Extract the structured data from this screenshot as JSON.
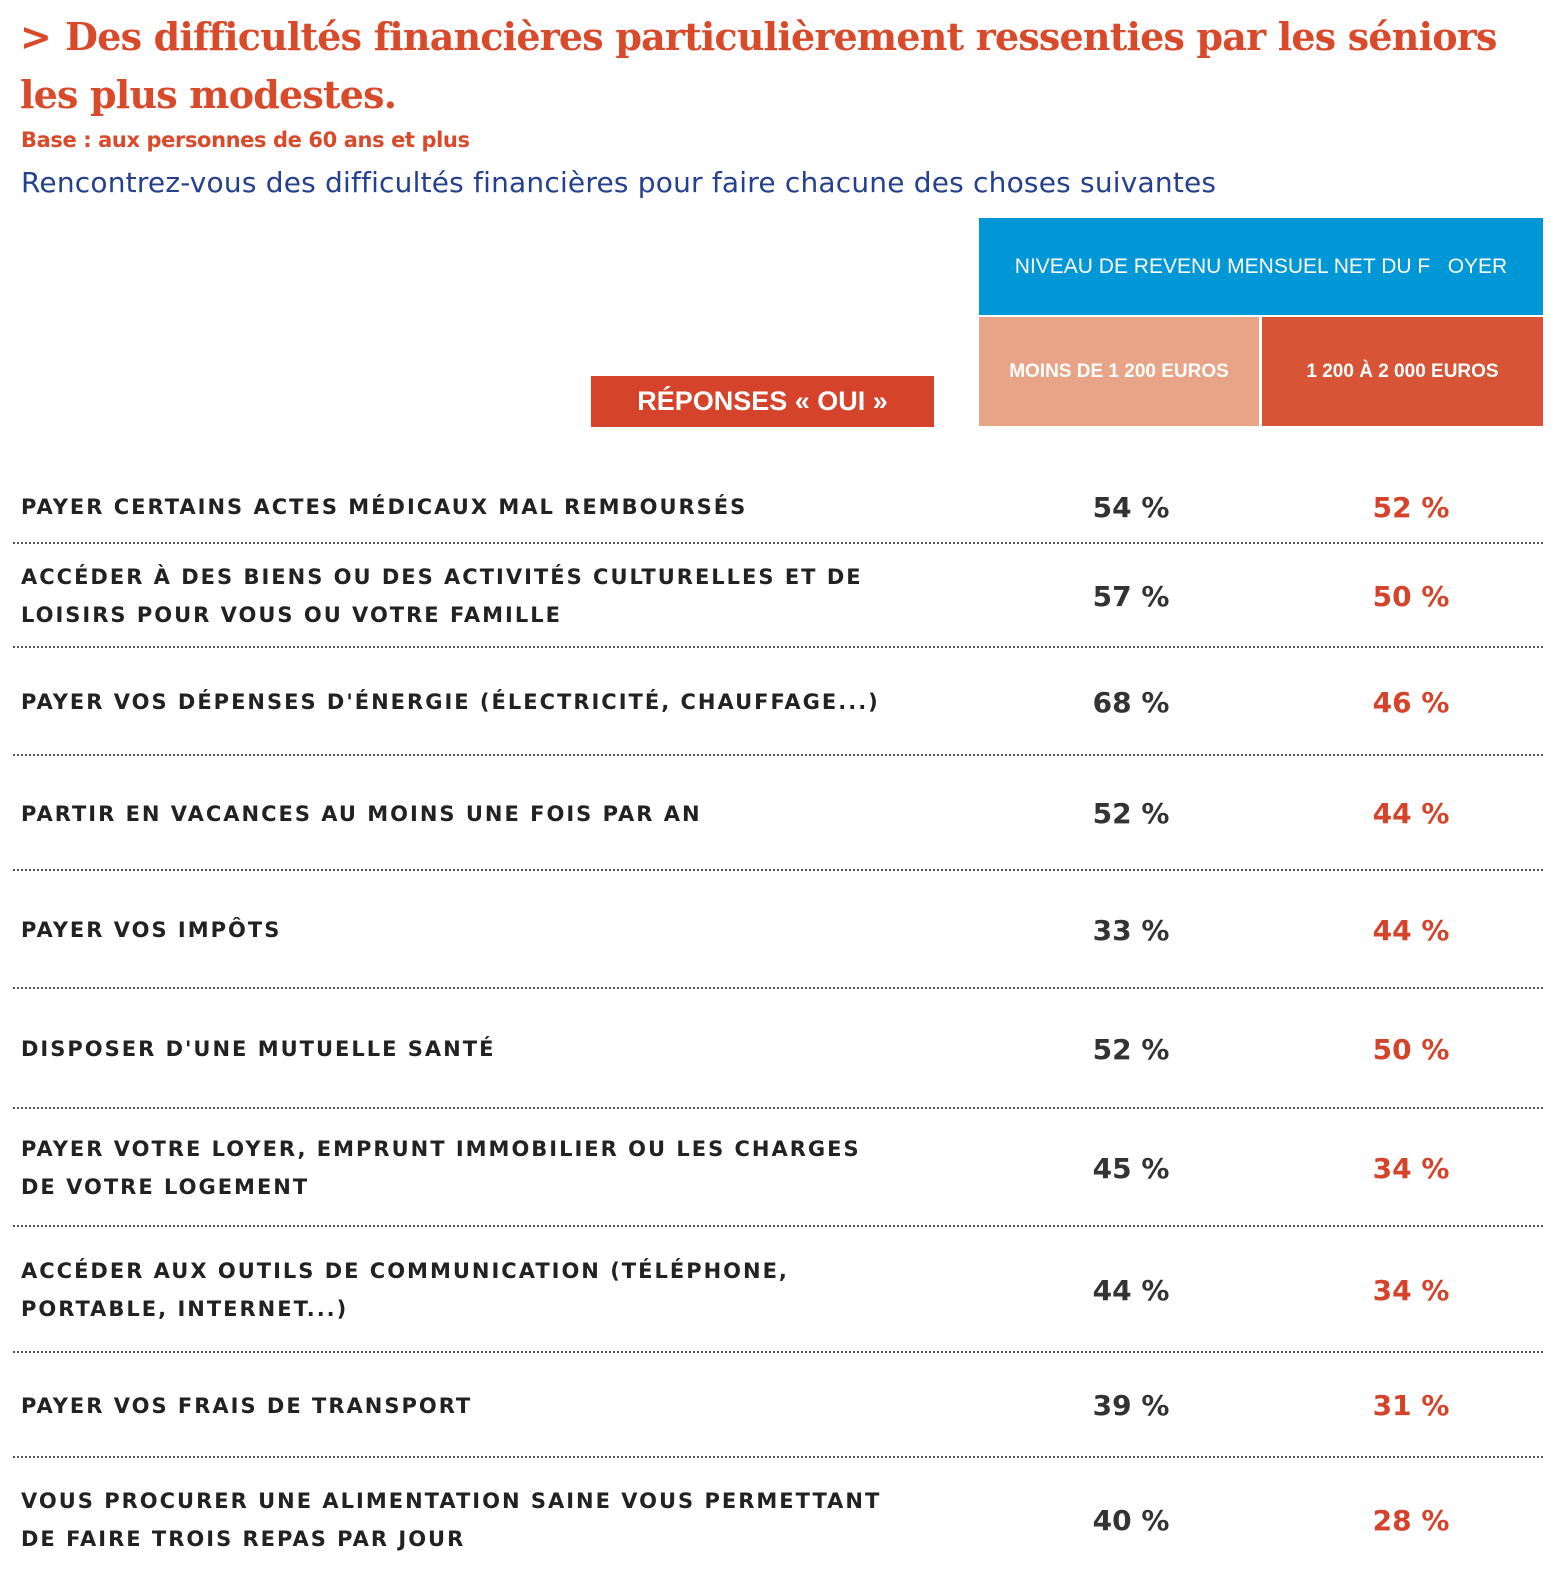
{
  "title": {
    "marker": ">",
    "text": "Des difficultés financières particulièrement ressenties par les séniors les plus modestes."
  },
  "base": "Base : aux personnes de 60 ans et plus",
  "question": "Rencontrez-vous des difficultés financières pour faire chacune des choses suivantes",
  "responses_label": "RÉPONSES « OUI »",
  "colors": {
    "title": "#d94a2b",
    "question": "#24408e",
    "header_blue": "#0097d6",
    "col_low": "#e8a487",
    "col_mid": "#d75536",
    "value_low": "#333333",
    "value_mid": "#d4432a"
  },
  "chart_data": {
    "type": "table",
    "group_header": "NIVEAU DE REVENU MENSUEL NET DU F   OYER",
    "columns": [
      "MOINS DE 1 200 EUROS",
      "1 200 À 2 000 EUROS"
    ],
    "rows": [
      {
        "label": "payer certains actes médicaux mal remboursés",
        "values": [
          "54 %",
          "52 %"
        ]
      },
      {
        "label": "accéder à des biens ou des activités culturelles et de loisirs pour vous ou votre famille",
        "values": [
          "57 %",
          "50 %"
        ]
      },
      {
        "label": "payer vos dépenses d'énergie (électricité, chauffage...)",
        "values": [
          "68 %",
          "46 %"
        ]
      },
      {
        "label": "partir en vacances au moins une fois par an",
        "values": [
          "52 %",
          "44 %"
        ]
      },
      {
        "label": "payer vos impôts",
        "values": [
          "33 %",
          "44 %"
        ]
      },
      {
        "label": "disposer d'une mutuelle santé",
        "values": [
          "52 %",
          "50 %"
        ]
      },
      {
        "label": "payer votre loyer, emprunt immobilier ou les charges de votre logement",
        "values": [
          "45 %",
          "34 %"
        ]
      },
      {
        "label": "accéder aux outils de communication (téléphone, portable, internet...)",
        "values": [
          "44 %",
          "34 %"
        ]
      },
      {
        "label": "payer vos frais de transport",
        "values": [
          "39 %",
          "31 %"
        ]
      },
      {
        "label": "vous procurer une alimentation saine vous permettant de faire trois repas par jour",
        "values": [
          "40 %",
          "28 %"
        ]
      }
    ]
  }
}
